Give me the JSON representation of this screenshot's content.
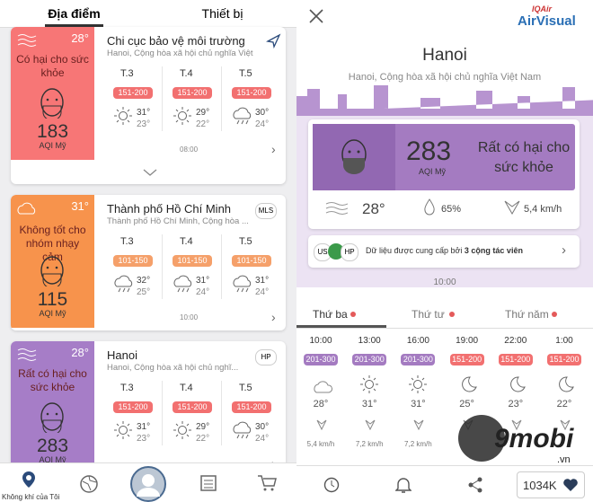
{
  "left": {
    "tabs": [
      "Địa điểm",
      "Thiết bị"
    ],
    "locations": [
      {
        "temp": "28°",
        "status": "Có hại cho sức khỏe",
        "aqi": "183",
        "aqi_label": "AQI Mỹ",
        "name": "Chi cục bảo vệ môi trường",
        "address": "Hanoi, Cộng hòa xã hội chủ nghĩa Việt Nam",
        "time": "08:00",
        "days": [
          {
            "day": "T.3",
            "range": "151-200",
            "high": "31°",
            "low": "23°"
          },
          {
            "day": "T.4",
            "range": "151-200",
            "high": "29°",
            "low": "22°"
          },
          {
            "day": "T.5",
            "range": "151-200",
            "high": "30°",
            "low": "24°"
          }
        ]
      },
      {
        "temp": "31°",
        "status": "Không tốt cho nhóm nhạy cảm",
        "aqi": "115",
        "aqi_label": "AQI Mỹ",
        "name": "Thành phố Hồ Chí Minh",
        "address": "Thành phố Hồ Chí Minh, Cộng hòa ...",
        "time": "10:00",
        "badge": "MLS",
        "days": [
          {
            "day": "T.3",
            "range": "101-150",
            "high": "32°",
            "low": "25°"
          },
          {
            "day": "T.4",
            "range": "101-150",
            "high": "31°",
            "low": "24°"
          },
          {
            "day": "T.5",
            "range": "101-150",
            "high": "31°",
            "low": "24°"
          }
        ]
      },
      {
        "temp": "28°",
        "status": "Rất có hại cho sức khỏe",
        "aqi": "283",
        "aqi_label": "AQI Mỹ",
        "name": "Hanoi",
        "address": "Hanoi, Cộng hòa xã hội chủ nghĩ...",
        "badge": "HP",
        "days": [
          {
            "day": "T.3",
            "range": "151-200",
            "high": "31°",
            "low": "23°"
          },
          {
            "day": "T.4",
            "range": "151-200",
            "high": "29°",
            "low": "22°"
          },
          {
            "day": "T.5",
            "range": "151-200",
            "high": "30°",
            "low": "24°"
          }
        ]
      }
    ],
    "nav_label": "Không khí của Tôi"
  },
  "right": {
    "logo_top": "IQAir",
    "logo": "AirVisual",
    "city": "Hanoi",
    "address": "Hanoi, Cộng hòa xã hội chủ nghĩa Việt Nam",
    "aqi": "283",
    "aqi_label": "AQI Mỹ",
    "status": "Rất có hại cho sức khỏe",
    "temp": "28°",
    "humidity": "65%",
    "wind": "5,4 km/h",
    "sources": [
      "US",
      "HP"
    ],
    "source_text": "Dữ liệu được cung cấp bởi",
    "source_count": "3 cộng tác viên",
    "updated": "10:00",
    "tabs": [
      "Thứ ba",
      "Thứ tư",
      "Thứ năm"
    ],
    "hourly": [
      {
        "time": "10:00",
        "range": "201-300",
        "temp": "28°",
        "wind": "5,4 km/h"
      },
      {
        "time": "13:00",
        "range": "201-300",
        "temp": "31°",
        "wind": "7,2 km/h"
      },
      {
        "time": "16:00",
        "range": "201-300",
        "temp": "31°",
        "wind": "7,2 km/h"
      },
      {
        "time": "19:00",
        "range": "151-200",
        "temp": "25°"
      },
      {
        "time": "22:00",
        "range": "151-200",
        "temp": "23°"
      },
      {
        "time": "1:00",
        "range": "151-200",
        "temp": "22°"
      }
    ],
    "likes": "1034K"
  },
  "watermark": {
    "brand": "9mobi",
    "domain": ".vn"
  }
}
